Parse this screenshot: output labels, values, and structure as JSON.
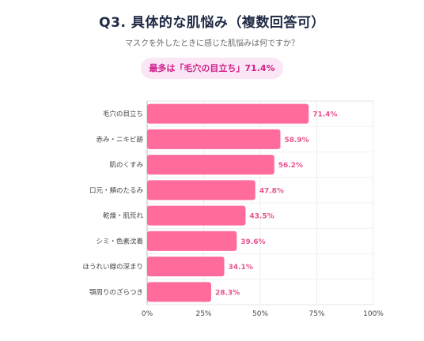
{
  "header": {
    "title": "Q3. 具体的な肌悩み（複数回答可）",
    "subtitle": "マスクを外したときに感じた肌悩みは何ですか？",
    "highlight": "最多は「毛穴の目立ち」71.4%"
  },
  "chart_data": {
    "type": "bar",
    "orientation": "horizontal",
    "categories": [
      "毛穴の目立ち",
      "赤み・ニキビ跡",
      "肌のくすみ",
      "口元・頬のたるみ",
      "乾燥・肌荒れ",
      "シミ・色素沈着",
      "ほうれい線の深まり",
      "顎周りのざらつき"
    ],
    "values": [
      71.4,
      58.9,
      56.2,
      47.8,
      43.5,
      39.6,
      34.1,
      28.3
    ],
    "value_labels": [
      "71.4%",
      "58.9%",
      "56.2%",
      "47.8%",
      "43.5%",
      "39.6%",
      "34.1%",
      "28.3%"
    ],
    "xlim": [
      0,
      100
    ],
    "xticks": [
      0,
      25,
      50,
      75,
      100
    ],
    "xtick_labels": [
      "0%",
      "25%",
      "50%",
      "75%",
      "100%"
    ],
    "bar_color": "#ff6b9a",
    "value_label_color": "#e8538f",
    "grid": true
  }
}
